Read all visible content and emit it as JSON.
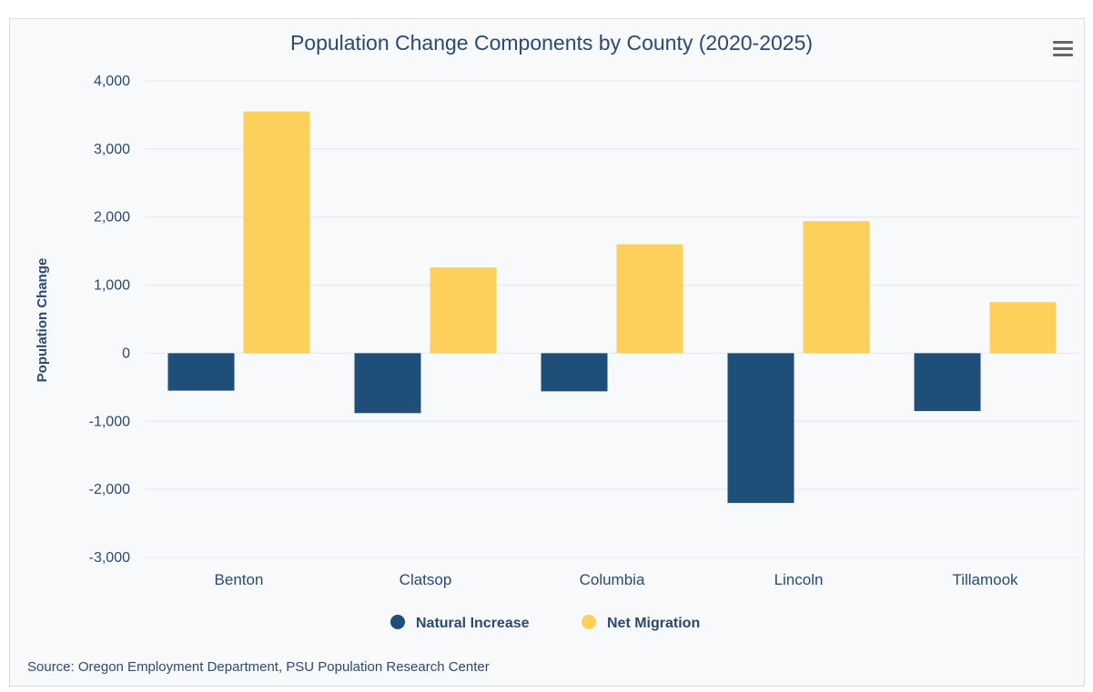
{
  "chart_data": {
    "type": "bar",
    "title": "Population Change Components by County (2020-2025)",
    "ylabel": "Population Change",
    "xlabel": "",
    "categories": [
      "Benton",
      "Clatsop",
      "Columbia",
      "Lincoln",
      "Tillamook"
    ],
    "series": [
      {
        "name": "Natural Increase",
        "color": "#1f4e79",
        "values": [
          -550,
          -880,
          -560,
          -2200,
          -850
        ]
      },
      {
        "name": "Net Migration",
        "color": "#fcd05b",
        "values": [
          3550,
          1260,
          1600,
          1940,
          750
        ]
      }
    ],
    "ylim": [
      -3000,
      4000
    ],
    "yticks": [
      4000,
      3000,
      2000,
      1000,
      0,
      -1000,
      -2000,
      -3000
    ],
    "ytick_labels": [
      "4,000",
      "3,000",
      "2,000",
      "1,000",
      "0",
      "-1,000",
      "-2,000",
      "-3,000"
    ],
    "grid": true,
    "legend_position": "bottom-center",
    "source": "Source: Oregon Employment Department, PSU Population Research Center"
  },
  "menu_icon": "hamburger-menu-icon"
}
